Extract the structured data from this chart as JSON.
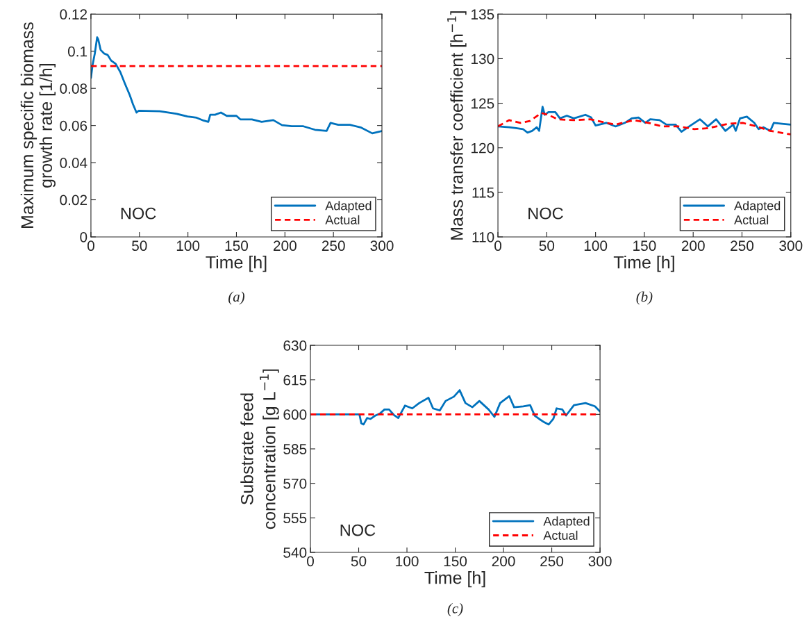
{
  "chart_data": [
    {
      "type": "line",
      "ylabel": "Maximum specific biomass\ngrowth rate [1/h]",
      "xlabel": "Time [h]",
      "annotations": [
        "NOC",
        "(a)"
      ],
      "xlim": [
        0,
        300
      ],
      "ylim": [
        0,
        0.12
      ],
      "xticks": [
        0,
        50,
        100,
        150,
        200,
        250,
        300
      ],
      "yticks": [
        0,
        0.02,
        0.04,
        0.06,
        0.08,
        0.1,
        0.12
      ],
      "legend": "bottom right",
      "grid": false,
      "series": [
        {
          "name": "Adapted",
          "color": "#0072bd",
          "line_style": "solid",
          "x": [
            0,
            1.7,
            4,
            6.4,
            7.6,
            10,
            13.6,
            17.2,
            20.8,
            25.5,
            30.3,
            35,
            40,
            43.4,
            47,
            49.4,
            71,
            87.6,
            99.5,
            109,
            116,
            121,
            123,
            128,
            134,
            140,
            150,
            154,
            166,
            176,
            188,
            197,
            207,
            219,
            231,
            243,
            247,
            255,
            267,
            278,
            290,
            300
          ],
          "values": [
            0.0857,
            0.0926,
            0.0988,
            0.1075,
            0.1063,
            0.1007,
            0.0988,
            0.098,
            0.095,
            0.0932,
            0.0888,
            0.0826,
            0.0764,
            0.0714,
            0.067,
            0.068,
            0.0677,
            0.0664,
            0.0649,
            0.0642,
            0.0627,
            0.062,
            0.0658,
            0.0658,
            0.067,
            0.0652,
            0.0652,
            0.0633,
            0.0633,
            0.062,
            0.0629,
            0.0602,
            0.0596,
            0.0596,
            0.0577,
            0.0571,
            0.0614,
            0.0604,
            0.0604,
            0.059,
            0.0558,
            0.057
          ]
        },
        {
          "name": "Actual",
          "color": "#ff0000",
          "line_style": "dashed",
          "x": [
            0,
            300
          ],
          "values": [
            0.092,
            0.092
          ]
        }
      ]
    },
    {
      "type": "line",
      "ylabel": "Mass transfer coefficient [h$^{−1}$]",
      "xlabel": "Time [h]",
      "annotations": [
        "NOC",
        "(b)"
      ],
      "xlim": [
        0,
        300
      ],
      "ylim": [
        110,
        135
      ],
      "xticks": [
        0,
        50,
        100,
        150,
        200,
        250,
        300
      ],
      "yticks": [
        110,
        115,
        120,
        125,
        130,
        135
      ],
      "legend": "bottom right",
      "grid": false,
      "series": [
        {
          "name": "Adapted",
          "color": "#0072bd",
          "line_style": "solid",
          "x": [
            0,
            11.4,
            18.5,
            25.6,
            30.3,
            35,
            39.8,
            42.2,
            45.7,
            48,
            51.7,
            58.8,
            63.5,
            70.6,
            77.7,
            89.6,
            95.5,
            100,
            111,
            120.5,
            130,
            137,
            144,
            151,
            156,
            165.5,
            172.6,
            182,
            188,
            196,
            207,
            215,
            223.5,
            233,
            241,
            243.6,
            248,
            255,
            262.6,
            267,
            272,
            279,
            282.6,
            291,
            300
          ],
          "values": [
            122.4,
            122.3,
            122.2,
            122.1,
            121.7,
            121.9,
            122.3,
            121.9,
            124.6,
            123.7,
            124.0,
            124.0,
            123.3,
            123.6,
            123.3,
            123.7,
            123.4,
            122.5,
            122.8,
            122.4,
            122.8,
            123.3,
            123.4,
            122.8,
            123.2,
            123.1,
            122.6,
            122.6,
            121.8,
            122.4,
            123.2,
            122.4,
            123.2,
            121.9,
            122.6,
            121.9,
            123.3,
            123.5,
            122.8,
            122.1,
            122.3,
            121.9,
            122.8,
            122.7,
            122.6
          ]
        },
        {
          "name": "Actual",
          "color": "#ff0000",
          "line_style": "dashed",
          "x": [
            0,
            11.4,
            23,
            32.7,
            44.5,
            51.7,
            61,
            77.7,
            94.3,
            111,
            120.5,
            139,
            154,
            168,
            184.7,
            201,
            215,
            236.5,
            250.7,
            265,
            279,
            300
          ],
          "values": [
            122.4,
            123.1,
            122.8,
            123.0,
            123.9,
            123.7,
            123.2,
            123.1,
            123.2,
            122.8,
            122.6,
            123.1,
            122.8,
            122.4,
            122.4,
            122.1,
            122.2,
            122.7,
            122.8,
            122.4,
            121.9,
            121.5
          ]
        }
      ]
    },
    {
      "type": "line",
      "ylabel": "Substrate feed\nconcentration [g L$^{−1}$]",
      "xlabel": "Time [h]",
      "annotations": [
        "NOC",
        "(c)"
      ],
      "xlim": [
        0,
        300
      ],
      "ylim": [
        540,
        630
      ],
      "xticks": [
        0,
        50,
        100,
        150,
        200,
        250,
        300
      ],
      "yticks": [
        540,
        555,
        570,
        585,
        600,
        615,
        630
      ],
      "legend": "bottom right",
      "grid": false,
      "series": [
        {
          "name": "Adapted",
          "color": "#0072bd",
          "line_style": "solid",
          "x": [
            0,
            50.8,
            52.7,
            55.1,
            58.7,
            62.3,
            67,
            71.9,
            76.7,
            81.5,
            86.3,
            91,
            94.6,
            98,
            105.5,
            112.7,
            122.3,
            127,
            134,
            140,
            148.6,
            154.6,
            160.6,
            167.8,
            175,
            184.6,
            190.6,
            196.5,
            206,
            211,
            220.5,
            227.6,
            232.4,
            237,
            242,
            246.8,
            251.6,
            255,
            261,
            264.8,
            273,
            285,
            294.7,
            300
          ],
          "values": [
            600,
            600,
            596.1,
            595.6,
            598.4,
            598,
            599.4,
            600.3,
            602.1,
            602.1,
            599.8,
            598.4,
            601.2,
            603.8,
            602.6,
            604.9,
            607.2,
            602.6,
            601.7,
            605.8,
            607.7,
            610.5,
            604.9,
            603.1,
            605.8,
            602.1,
            598.9,
            604.9,
            607.9,
            603.1,
            603.5,
            604,
            599.4,
            598,
            596.6,
            595.6,
            598,
            602.6,
            602.1,
            599.5,
            604,
            604.9,
            603.5,
            601.2
          ]
        },
        {
          "name": "Actual",
          "color": "#ff0000",
          "line_style": "dashed",
          "x": [
            0,
            300
          ],
          "values": [
            600,
            600
          ]
        }
      ]
    }
  ]
}
